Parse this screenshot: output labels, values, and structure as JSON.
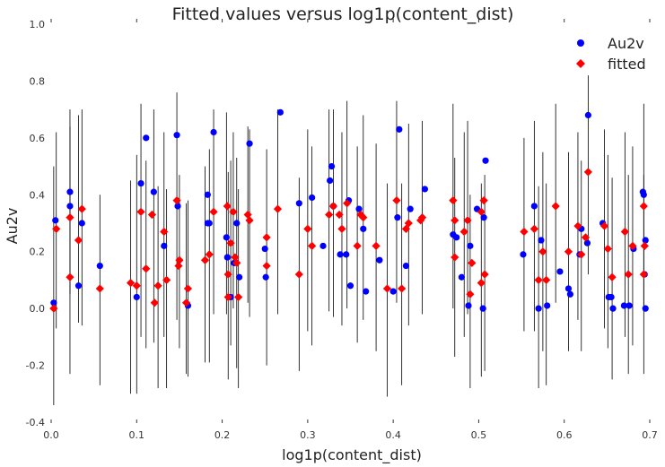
{
  "chart_data": {
    "type": "scatter",
    "title": "Fitted values versus log1p(content_dist)",
    "xlabel": "log1p(content_dist)",
    "ylabel": "Au2v",
    "xlim": [
      0.0,
      0.7
    ],
    "ylim": [
      -0.4,
      1.0
    ],
    "xticks": [
      "0.0",
      "0.1",
      "0.2",
      "0.3",
      "0.4",
      "0.5",
      "0.6",
      "0.7"
    ],
    "yticks": [
      "-0.4",
      "-0.2",
      "0.0",
      "0.2",
      "0.4",
      "0.6",
      "0.8",
      "1.0"
    ],
    "grid": false,
    "legend": "top-right",
    "colors": {
      "Au2v": "#0000ff",
      "fitted": "#ff0000",
      "errorbar": "#000000"
    },
    "series": [
      {
        "name": "Au2v",
        "marker": "circle",
        "points": [
          [
            0.003,
            0.02
          ],
          [
            0.005,
            0.31
          ],
          [
            0.022,
            0.41
          ],
          [
            0.022,
            0.36
          ],
          [
            0.032,
            0.08
          ],
          [
            0.036,
            0.3
          ],
          [
            0.057,
            0.15
          ],
          [
            0.105,
            0.44
          ],
          [
            0.111,
            0.6
          ],
          [
            0.12,
            0.41
          ],
          [
            0.1,
            0.04
          ],
          [
            0.132,
            0.22
          ],
          [
            0.147,
            0.61
          ],
          [
            0.148,
            0.36
          ],
          [
            0.16,
            0.01
          ],
          [
            0.183,
            0.4
          ],
          [
            0.183,
            0.3
          ],
          [
            0.185,
            0.3
          ],
          [
            0.19,
            0.62
          ],
          [
            0.205,
            0.25
          ],
          [
            0.206,
            0.18
          ],
          [
            0.21,
            0.04
          ],
          [
            0.214,
            0.16
          ],
          [
            0.217,
            0.3
          ],
          [
            0.22,
            0.11
          ],
          [
            0.232,
            0.58
          ],
          [
            0.25,
            0.21
          ],
          [
            0.251,
            0.11
          ],
          [
            0.268,
            0.69
          ],
          [
            0.29,
            0.37
          ],
          [
            0.305,
            0.39
          ],
          [
            0.318,
            0.22
          ],
          [
            0.326,
            0.45
          ],
          [
            0.328,
            0.5
          ],
          [
            0.33,
            0.36
          ],
          [
            0.338,
            0.19
          ],
          [
            0.345,
            0.19
          ],
          [
            0.348,
            0.38
          ],
          [
            0.35,
            0.08
          ],
          [
            0.36,
            0.35
          ],
          [
            0.365,
            0.28
          ],
          [
            0.368,
            0.06
          ],
          [
            0.384,
            0.17
          ],
          [
            0.4,
            0.06
          ],
          [
            0.405,
            0.32
          ],
          [
            0.407,
            0.63
          ],
          [
            0.415,
            0.15
          ],
          [
            0.42,
            0.35
          ],
          [
            0.437,
            0.42
          ],
          [
            0.47,
            0.26
          ],
          [
            0.474,
            0.25
          ],
          [
            0.48,
            0.11
          ],
          [
            0.488,
            0.01
          ],
          [
            0.49,
            0.22
          ],
          [
            0.498,
            0.35
          ],
          [
            0.505,
            0.0
          ],
          [
            0.506,
            0.32
          ],
          [
            0.508,
            0.52
          ],
          [
            0.552,
            0.19
          ],
          [
            0.565,
            0.36
          ],
          [
            0.57,
            0.0
          ],
          [
            0.573,
            0.24
          ],
          [
            0.58,
            0.01
          ],
          [
            0.595,
            0.13
          ],
          [
            0.605,
            0.07
          ],
          [
            0.607,
            0.05
          ],
          [
            0.618,
            0.19
          ],
          [
            0.62,
            0.28
          ],
          [
            0.627,
            0.23
          ],
          [
            0.628,
            0.68
          ],
          [
            0.645,
            0.3
          ],
          [
            0.652,
            0.04
          ],
          [
            0.655,
            0.04
          ],
          [
            0.657,
            0.0
          ],
          [
            0.67,
            0.01
          ],
          [
            0.676,
            0.01
          ],
          [
            0.681,
            0.21
          ],
          [
            0.692,
            0.41
          ],
          [
            0.693,
            0.4
          ],
          [
            0.694,
            0.12
          ],
          [
            0.695,
            0.0
          ],
          [
            0.695,
            0.24
          ]
        ]
      },
      {
        "name": "fitted",
        "marker": "diamond",
        "points": [
          [
            0.003,
            0.0
          ],
          [
            0.006,
            0.28
          ],
          [
            0.022,
            0.32
          ],
          [
            0.022,
            0.11
          ],
          [
            0.032,
            0.24
          ],
          [
            0.036,
            0.35
          ],
          [
            0.057,
            0.07
          ],
          [
            0.093,
            0.09
          ],
          [
            0.1,
            0.08
          ],
          [
            0.105,
            0.34
          ],
          [
            0.111,
            0.14
          ],
          [
            0.118,
            0.33
          ],
          [
            0.121,
            0.02
          ],
          [
            0.125,
            0.08
          ],
          [
            0.132,
            0.27
          ],
          [
            0.135,
            0.1
          ],
          [
            0.147,
            0.38
          ],
          [
            0.149,
            0.15
          ],
          [
            0.15,
            0.17
          ],
          [
            0.158,
            0.02
          ],
          [
            0.16,
            0.07
          ],
          [
            0.18,
            0.17
          ],
          [
            0.185,
            0.19
          ],
          [
            0.19,
            0.34
          ],
          [
            0.206,
            0.36
          ],
          [
            0.207,
            0.12
          ],
          [
            0.207,
            0.04
          ],
          [
            0.21,
            0.23
          ],
          [
            0.213,
            0.34
          ],
          [
            0.215,
            0.18
          ],
          [
            0.217,
            0.16
          ],
          [
            0.219,
            0.04
          ],
          [
            0.23,
            0.33
          ],
          [
            0.232,
            0.31
          ],
          [
            0.252,
            0.25
          ],
          [
            0.252,
            0.15
          ],
          [
            0.265,
            0.35
          ],
          [
            0.29,
            0.12
          ],
          [
            0.3,
            0.28
          ],
          [
            0.305,
            0.22
          ],
          [
            0.325,
            0.33
          ],
          [
            0.33,
            0.36
          ],
          [
            0.337,
            0.33
          ],
          [
            0.34,
            0.28
          ],
          [
            0.346,
            0.37
          ],
          [
            0.358,
            0.22
          ],
          [
            0.362,
            0.33
          ],
          [
            0.365,
            0.32
          ],
          [
            0.38,
            0.22
          ],
          [
            0.393,
            0.07
          ],
          [
            0.404,
            0.38
          ],
          [
            0.41,
            0.07
          ],
          [
            0.415,
            0.28
          ],
          [
            0.418,
            0.3
          ],
          [
            0.432,
            0.31
          ],
          [
            0.434,
            0.32
          ],
          [
            0.47,
            0.38
          ],
          [
            0.472,
            0.18
          ],
          [
            0.472,
            0.31
          ],
          [
            0.483,
            0.27
          ],
          [
            0.487,
            0.31
          ],
          [
            0.49,
            0.05
          ],
          [
            0.492,
            0.16
          ],
          [
            0.503,
            0.34
          ],
          [
            0.503,
            0.09
          ],
          [
            0.507,
            0.12
          ],
          [
            0.506,
            0.38
          ],
          [
            0.553,
            0.27
          ],
          [
            0.565,
            0.28
          ],
          [
            0.57,
            0.1
          ],
          [
            0.575,
            0.2
          ],
          [
            0.579,
            0.1
          ],
          [
            0.59,
            0.36
          ],
          [
            0.605,
            0.2
          ],
          [
            0.616,
            0.29
          ],
          [
            0.62,
            0.19
          ],
          [
            0.625,
            0.25
          ],
          [
            0.628,
            0.48
          ],
          [
            0.647,
            0.29
          ],
          [
            0.651,
            0.21
          ],
          [
            0.656,
            0.11
          ],
          [
            0.671,
            0.27
          ],
          [
            0.675,
            0.12
          ],
          [
            0.68,
            0.22
          ],
          [
            0.693,
            0.36
          ],
          [
            0.693,
            0.12
          ],
          [
            0.694,
            0.22
          ]
        ]
      }
    ],
    "errorbars": [
      [
        0.003,
        -0.34,
        0.5
      ],
      [
        0.006,
        -0.07,
        0.62
      ],
      [
        0.022,
        -0.23,
        0.7
      ],
      [
        0.022,
        0.05,
        0.64
      ],
      [
        0.032,
        -0.05,
        0.68
      ],
      [
        0.036,
        -0.06,
        0.7
      ],
      [
        0.057,
        -0.27,
        0.4
      ],
      [
        0.093,
        -0.3,
        0.45
      ],
      [
        0.1,
        -0.3,
        0.54
      ],
      [
        0.105,
        -0.1,
        0.72
      ],
      [
        0.111,
        -0.14,
        0.52
      ],
      [
        0.12,
        -0.12,
        0.7
      ],
      [
        0.125,
        -0.28,
        0.43
      ],
      [
        0.132,
        -0.1,
        0.62
      ],
      [
        0.135,
        -0.28,
        0.42
      ],
      [
        0.147,
        -0.04,
        0.76
      ],
      [
        0.15,
        -0.14,
        0.47
      ],
      [
        0.158,
        -0.23,
        0.37
      ],
      [
        0.16,
        -0.24,
        0.38
      ],
      [
        0.18,
        -0.19,
        0.5
      ],
      [
        0.185,
        -0.19,
        0.56
      ],
      [
        0.19,
        -0.02,
        0.7
      ],
      [
        0.205,
        -0.02,
        0.69
      ],
      [
        0.207,
        -0.25,
        0.48
      ],
      [
        0.21,
        -0.13,
        0.52
      ],
      [
        0.213,
        0.0,
        0.62
      ],
      [
        0.217,
        -0.21,
        0.53
      ],
      [
        0.219,
        -0.28,
        0.42
      ],
      [
        0.23,
        0.02,
        0.64
      ],
      [
        0.232,
        -0.03,
        0.63
      ],
      [
        0.252,
        -0.2,
        0.56
      ],
      [
        0.265,
        -0.02,
        0.7
      ],
      [
        0.29,
        -0.22,
        0.46
      ],
      [
        0.3,
        -0.08,
        0.63
      ],
      [
        0.305,
        -0.13,
        0.57
      ],
      [
        0.325,
        -0.01,
        0.7
      ],
      [
        0.33,
        -0.03,
        0.7
      ],
      [
        0.34,
        -0.06,
        0.62
      ],
      [
        0.346,
        0.0,
        0.73
      ],
      [
        0.358,
        -0.12,
        0.57
      ],
      [
        0.365,
        -0.04,
        0.68
      ],
      [
        0.38,
        -0.15,
        0.58
      ],
      [
        0.393,
        -0.31,
        0.44
      ],
      [
        0.404,
        0.02,
        0.73
      ],
      [
        0.41,
        -0.27,
        0.44
      ],
      [
        0.418,
        -0.06,
        0.65
      ],
      [
        0.434,
        -0.02,
        0.66
      ],
      [
        0.47,
        0.0,
        0.72
      ],
      [
        0.472,
        -0.17,
        0.53
      ],
      [
        0.483,
        -0.1,
        0.62
      ],
      [
        0.487,
        -0.02,
        0.66
      ],
      [
        0.49,
        -0.28,
        0.4
      ],
      [
        0.503,
        -0.24,
        0.44
      ],
      [
        0.507,
        -0.22,
        0.47
      ],
      [
        0.553,
        -0.08,
        0.6
      ],
      [
        0.565,
        -0.08,
        0.66
      ],
      [
        0.57,
        -0.28,
        0.43
      ],
      [
        0.575,
        -0.15,
        0.55
      ],
      [
        0.579,
        -0.27,
        0.44
      ],
      [
        0.59,
        0.02,
        0.72
      ],
      [
        0.605,
        -0.15,
        0.55
      ],
      [
        0.616,
        -0.04,
        0.62
      ],
      [
        0.62,
        -0.15,
        0.52
      ],
      [
        0.628,
        0.12,
        0.82
      ],
      [
        0.647,
        -0.07,
        0.63
      ],
      [
        0.651,
        -0.14,
        0.54
      ],
      [
        0.656,
        -0.25,
        0.46
      ],
      [
        0.671,
        -0.1,
        0.62
      ],
      [
        0.675,
        -0.23,
        0.47
      ],
      [
        0.68,
        -0.13,
        0.57
      ],
      [
        0.693,
        0.0,
        0.72
      ],
      [
        0.693,
        -0.23,
        0.47
      ]
    ]
  }
}
